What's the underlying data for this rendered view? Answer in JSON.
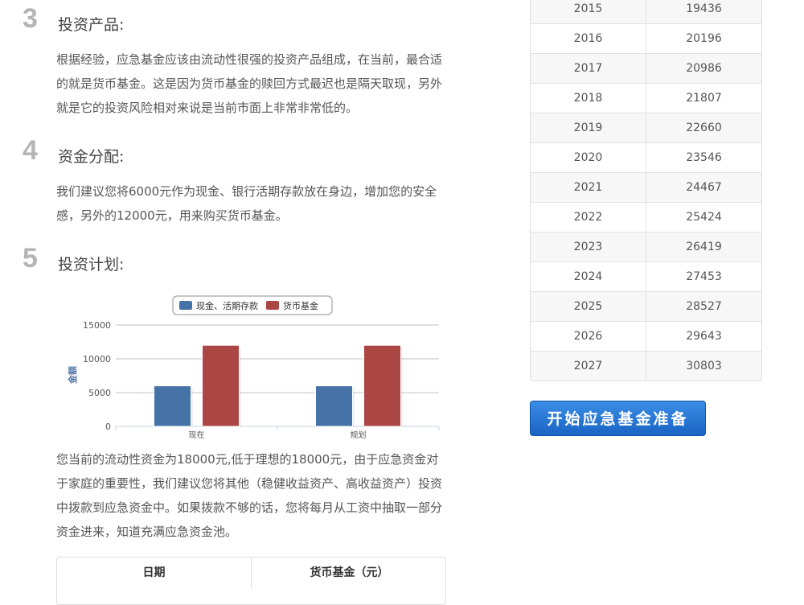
{
  "sections": [
    {
      "num": "3",
      "title": "投资产品:",
      "text": "根据经验，应急基金应该由流动性很强的投资产品组成，在当前，最合适的就是货币基金。这是因为货币基金的赎回方式最迟也是隔天取现，另外就是它的投资风险相对来说是当前市面上非常非常低的。"
    },
    {
      "num": "4",
      "title": "资金分配:",
      "text": "我们建议您将6000元作为现金、银行活期存款放在身边，增加您的安全感，另外的12000元，用来购买货币基金。"
    },
    {
      "num": "5",
      "title": "投资计划:",
      "text": "您当前的流动性资金为18000元,低于理想的18000元，由于应急资金对于家庭的重要性，我们建议您将其他（稳健收益资产、高收益资产）投资中拨款到应急资金中。如果拨款不够的话，您将每月从工资中抽取一部分资金进来，知道充满应急资金池。"
    }
  ],
  "chart_data": {
    "type": "bar",
    "categories": [
      "现在",
      "规划"
    ],
    "series": [
      {
        "name": "现金、活期存款",
        "values": [
          6000,
          6000
        ],
        "color": "#4572a7"
      },
      {
        "name": "货币基金",
        "values": [
          12000,
          12000
        ],
        "color": "#aa4643"
      }
    ],
    "ylabel": "金额",
    "ylim": [
      0,
      15000
    ],
    "yticks": [
      0,
      5000,
      10000,
      15000
    ],
    "legend": "top-center"
  },
  "bottom_table": {
    "headers": [
      "日期",
      "货币基金（元）"
    ]
  },
  "right_table": [
    [
      "2015",
      "19436"
    ],
    [
      "2016",
      "20196"
    ],
    [
      "2017",
      "20986"
    ],
    [
      "2018",
      "21807"
    ],
    [
      "2019",
      "22660"
    ],
    [
      "2020",
      "23546"
    ],
    [
      "2021",
      "24467"
    ],
    [
      "2022",
      "25424"
    ],
    [
      "2023",
      "26419"
    ],
    [
      "2024",
      "27453"
    ],
    [
      "2025",
      "28527"
    ],
    [
      "2026",
      "29643"
    ],
    [
      "2027",
      "30803"
    ]
  ],
  "start_button": "开始应急基金准备"
}
